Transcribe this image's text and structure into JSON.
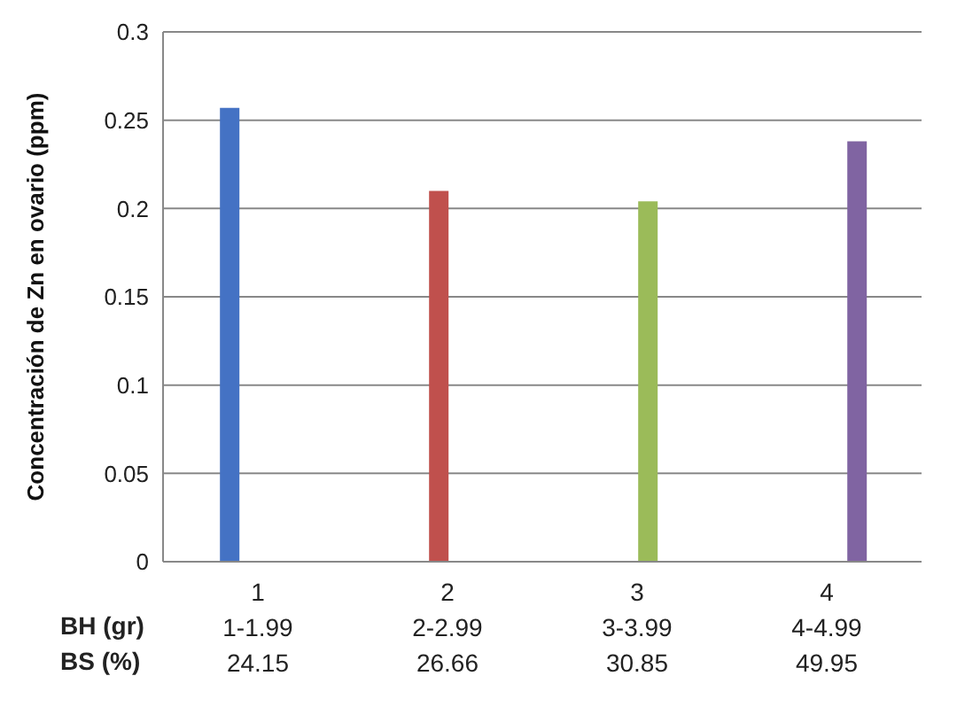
{
  "chart_data": {
    "type": "bar",
    "ylabel": "Concentración de Zn en ovario (ppm)",
    "categories": [
      "1\n1-1.99\n24.15",
      "2\n2-2.99\n26.66",
      "3\n3-3.99\n30.85",
      "4\n4-4.99\n49.95"
    ],
    "series": [
      {
        "color": "#4472c4",
        "values": [
          0.257,
          null,
          null,
          null
        ]
      },
      {
        "color": "#c0504d",
        "values": [
          null,
          0.21,
          null,
          null
        ]
      },
      {
        "color": "#9bbb59",
        "values": [
          null,
          null,
          0.204,
          null
        ]
      },
      {
        "color": "#8064a2",
        "values": [
          null,
          null,
          null,
          0.238
        ]
      }
    ],
    "annotations": [
      "BH (gr)",
      "BS (%)"
    ],
    "ylim": [
      0,
      0.3
    ],
    "yticks": [
      0,
      0.05,
      0.1,
      0.15,
      0.2,
      0.25,
      0.3
    ],
    "grid": "y",
    "legend": false
  }
}
